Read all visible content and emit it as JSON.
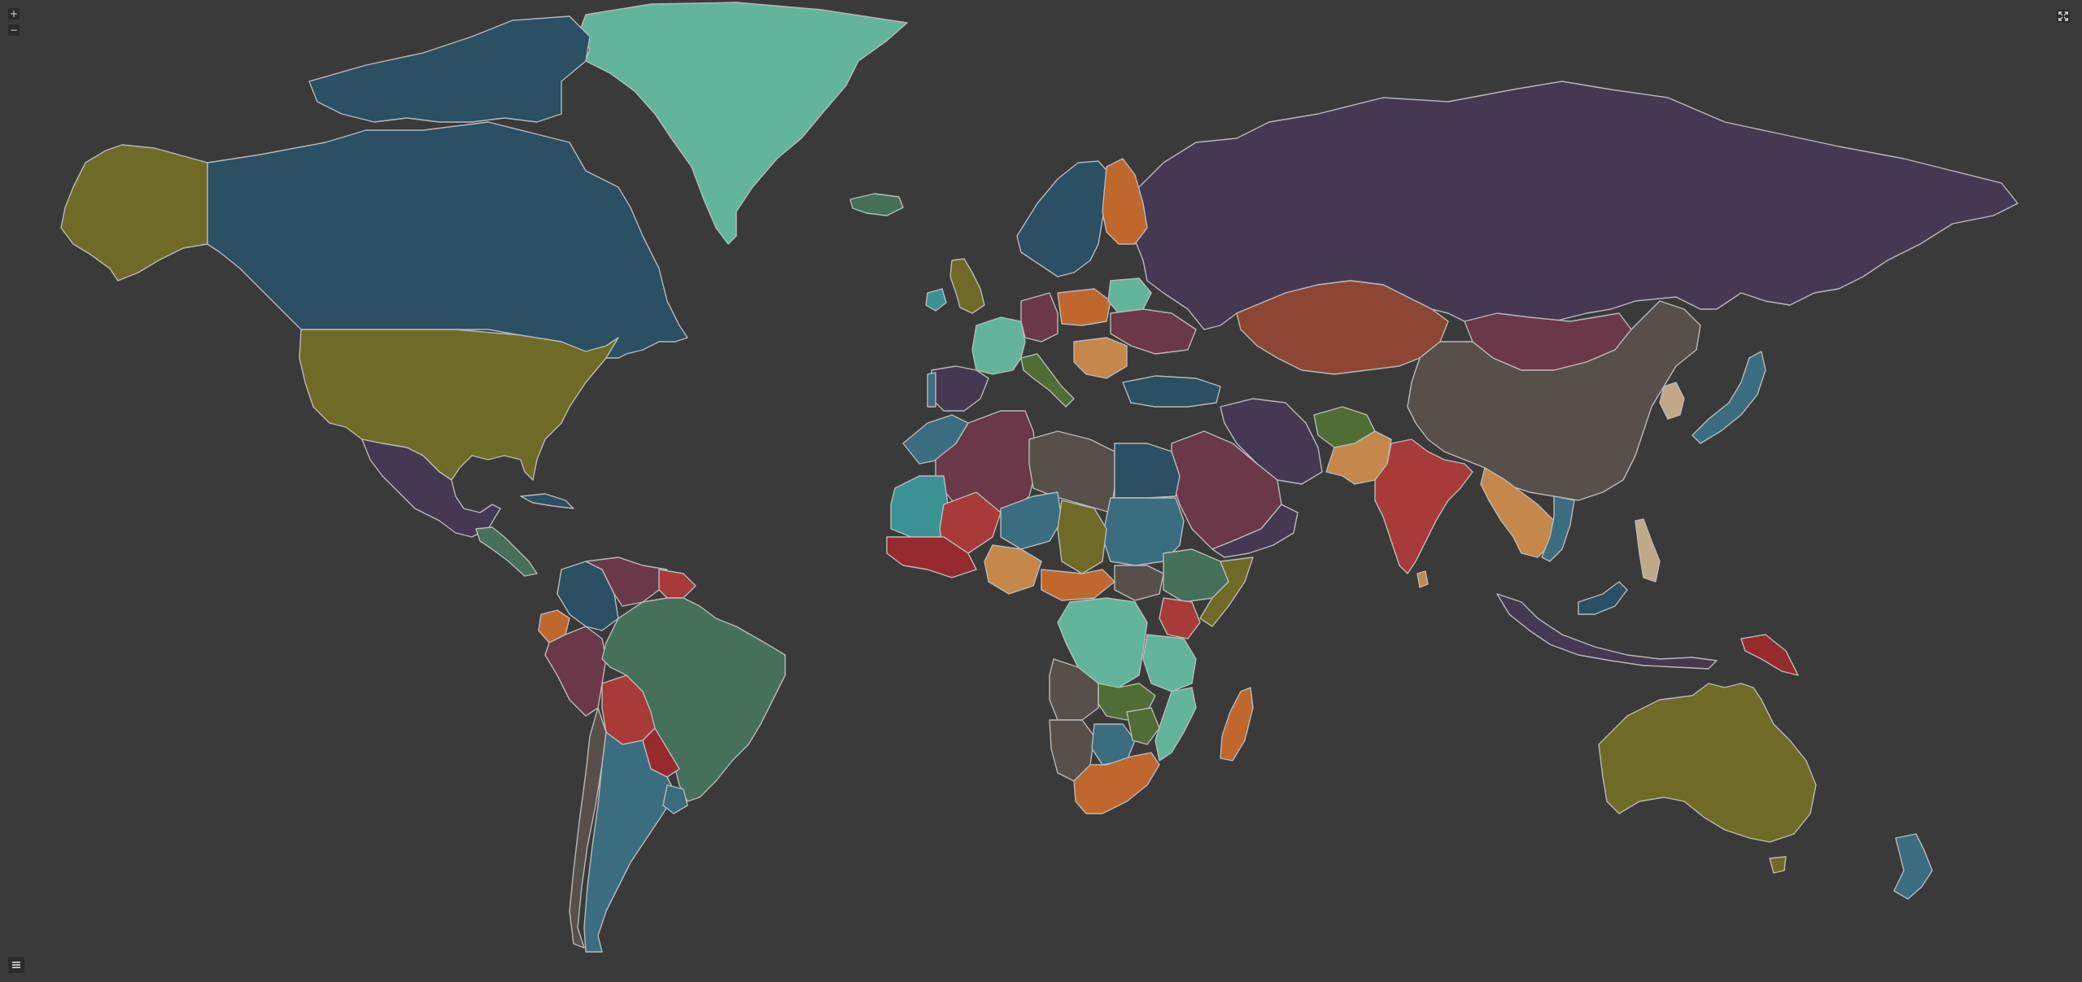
{
  "controls": {
    "zoom_in_label": "+",
    "zoom_out_label": "−",
    "fullscreen_icon": "expand-icon",
    "menu_icon": "hamburger-menu-icon"
  },
  "map": {
    "background_color": "#3a3a3a",
    "border_color": "#b9b9b9",
    "palette": {
      "navy_teal": "#2b4f63",
      "olive": "#6f6b27",
      "mint": "#62b59b",
      "purple": "#453852",
      "orange": "#c0672e",
      "brown": "#57504a",
      "maroon": "#6a3848",
      "red": "#a83b38",
      "dark_green": "#45705a",
      "steel_teal": "#3b6d80",
      "tan": "#c5884a",
      "bright_teal": "#3a9295",
      "grass": "#4f6d34",
      "crimson": "#962a2d",
      "sand": "#c1a888"
    }
  }
}
